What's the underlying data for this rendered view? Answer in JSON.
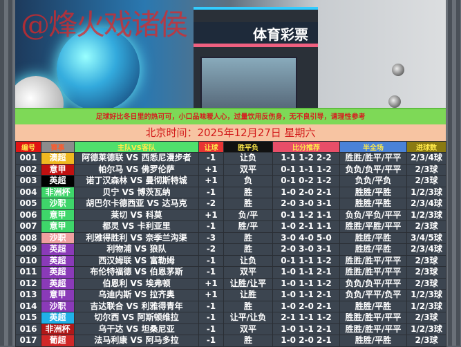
{
  "banner": {
    "watermark": "@烽火戏诸侯",
    "store_sign": "体育彩票"
  },
  "notice": "足球好比冬日里的热可可，小口品味暖人心，过量饮用反伤身，无不良引导，请理性参考",
  "date": "北京时间：2025年12月27日  星期六",
  "columns": [
    {
      "label": "编号",
      "bg": "#e01414"
    },
    {
      "label": "赛事",
      "bg": "#8c8c8c",
      "color": "#ff5a2a"
    },
    {
      "label": "主队VS客队",
      "bg": "#4fe06c"
    },
    {
      "label": "让球",
      "bg": "#e83434"
    },
    {
      "label": "胜平负",
      "bg": "#111111"
    },
    {
      "label": "比分推荐",
      "bg": "#e84e68"
    },
    {
      "label": "半全场",
      "bg": "#4a82d8"
    },
    {
      "label": "进球数",
      "bg": "#8a7a12"
    }
  ],
  "rows": [
    {
      "no": "001",
      "league": "澳超",
      "league_color": "#f0b820",
      "match": "阿德莱德联 VS 西悉尼漫步者",
      "handicap": "-1",
      "result": "让负",
      "scores": "1-1 1-2 2-2",
      "half_full": "胜胜/胜平/平平",
      "goals": "2/3/4球"
    },
    {
      "no": "002",
      "league": "意甲",
      "league_color": "#c01010",
      "match": "帕尔马 VS 佛罗伦萨",
      "handicap": "+1",
      "result": "双平",
      "scores": "0-1 1-1 1-2",
      "half_full": "负负/负平/平平",
      "goals": "2/3球"
    },
    {
      "no": "003",
      "league": "英超",
      "league_color": "#000000",
      "match": "诺丁汉森林 VS 曼彻斯特城",
      "handicap": "+1",
      "result": "负",
      "scores": "0-1 0-2 1-2",
      "half_full": "负负/平负",
      "goals": "2/3球"
    },
    {
      "no": "004",
      "league": "非洲杯",
      "league_color": "#3ed66a",
      "match": "贝宁 VS 博茨瓦纳",
      "handicap": "-1",
      "result": "胜",
      "scores": "1-0 2-0 2-1",
      "half_full": "胜胜/平胜",
      "goals": "1/2/3球"
    },
    {
      "no": "005",
      "league": "沙职",
      "league_color": "#3ed66a",
      "match": "胡巴尔卡德西亚 VS 达马克",
      "handicap": "-2",
      "result": "胜",
      "scores": "2-0 3-0 3-1",
      "half_full": "胜胜/平胜",
      "goals": "2/3/4球"
    },
    {
      "no": "006",
      "league": "意甲",
      "league_color": "#3ed66a",
      "match": "莱切 VS 科莫",
      "handicap": "+1",
      "result": "负/平",
      "scores": "0-1 1-2 1-1",
      "half_full": "负负/平负/平平",
      "goals": "1/2/3球"
    },
    {
      "no": "007",
      "league": "意甲",
      "league_color": "#3ed66a",
      "match": "都灵 VS 卡利亚里",
      "handicap": "-1",
      "result": "胜/平",
      "scores": "1-0 2-1 1-1",
      "half_full": "胜胜/平胜/平平",
      "goals": "2/3球"
    },
    {
      "no": "008",
      "league": "沙职",
      "league_color": "#f0a0a0",
      "match": "利雅得胜利 VS 奈季兰沟渠",
      "handicap": "-3",
      "result": "胜",
      "scores": "3-0 4-0 5-0",
      "half_full": "胜胜/平胜",
      "goals": "3/4/5球"
    },
    {
      "no": "009",
      "league": "英超",
      "league_color": "#8a3ab8",
      "match": "利物浦 VS 狼队",
      "handicap": "-2",
      "result": "胜",
      "scores": "2-0 3-0 3-1",
      "half_full": "胜胜/平胜",
      "goals": "2/3/4球"
    },
    {
      "no": "010",
      "league": "英超",
      "league_color": "#8a3ab8",
      "match": "西汉姆联 VS 富勒姆",
      "handicap": "-1",
      "result": "让负",
      "scores": "0-1 1-1 1-2",
      "half_full": "胜胜/胜平/平平",
      "goals": "2/3球"
    },
    {
      "no": "011",
      "league": "英超",
      "league_color": "#8a3ab8",
      "match": "布伦特福德 VS 伯恩茅斯",
      "handicap": "-1",
      "result": "双平",
      "scores": "1-0 1-1 2-1",
      "half_full": "胜胜/胜平/平平",
      "goals": "2/3球"
    },
    {
      "no": "012",
      "league": "英超",
      "league_color": "#8a3ab8",
      "match": "伯恩利 VS 埃弗顿",
      "handicap": "+1",
      "result": "让胜/让平",
      "scores": "1-0 1-1 1-2",
      "half_full": "负负/负平/平平",
      "goals": "2/3球"
    },
    {
      "no": "013",
      "league": "意甲",
      "league_color": "#8a3ab8",
      "match": "乌迪内斯 VS 拉齐奥",
      "handicap": "+1",
      "result": "让胜",
      "scores": "1-0 1-1 2-1",
      "half_full": "负负/平平/负平",
      "goals": "1/2/3球"
    },
    {
      "no": "014",
      "league": "沙职",
      "league_color": "#8a3ab8",
      "match": "吉达联合 VS 利雅得青年",
      "handicap": "-1",
      "result": "胜",
      "scores": "1-0 2-0 2-1",
      "half_full": "胜胜/平胜",
      "goals": "1/2/3球"
    },
    {
      "no": "015",
      "league": "英超",
      "league_color": "#20b0e8",
      "match": "切尔西 VS 阿斯顿维拉",
      "handicap": "-1",
      "result": "让平/让负",
      "scores": "2-1 1-1 1-2",
      "half_full": "胜胜/胜平/平平",
      "goals": "2/3球"
    },
    {
      "no": "016",
      "league": "非洲杯",
      "league_color": "#b01818",
      "match": "乌干达 VS 坦桑尼亚",
      "handicap": "-1",
      "result": "双平",
      "scores": "1-0 1-1 2-1",
      "half_full": "胜胜/胜平/平平",
      "goals": "1/2/3球"
    },
    {
      "no": "017",
      "league": "葡超",
      "league_color": "#d02828",
      "match": "法马利康 VS 阿马多拉",
      "handicap": "-1",
      "result": "胜",
      "scores": "1-0 2-0 2-1",
      "half_full": "胜胜/平胜",
      "goals": "2/3球"
    }
  ]
}
